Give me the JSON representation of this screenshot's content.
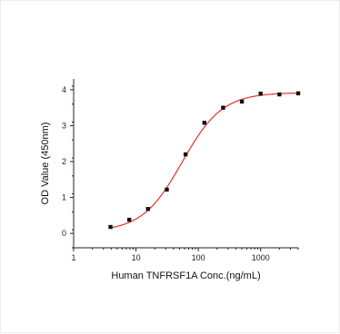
{
  "chart_data": {
    "type": "scatter",
    "title": "",
    "xlabel": "Human TNFRSF1A Conc.(ng/mL)",
    "ylabel": "OD Value (450nm)",
    "xscale": "log",
    "xlim": [
      1,
      4000
    ],
    "ylim": [
      -0.4,
      4.3
    ],
    "xticks": [
      1,
      10,
      100,
      1000
    ],
    "xtick_labels": [
      "1",
      "10",
      "100",
      "1000"
    ],
    "yticks": [
      0,
      1,
      2,
      3,
      4
    ],
    "ytick_labels": [
      "0",
      "1",
      "2",
      "3",
      "4"
    ],
    "grid": false,
    "legend": "none",
    "series": [
      {
        "x": [
          3.9,
          7.8,
          15.6,
          31.25,
          62.5,
          125,
          250,
          500,
          1000,
          2000,
          4000
        ],
        "y": [
          0.18,
          0.38,
          0.68,
          1.22,
          2.2,
          3.08,
          3.5,
          3.67,
          3.89,
          3.87,
          3.9
        ],
        "marker": "square",
        "color": "#111111"
      }
    ],
    "fit_curve": {
      "model": "4PL",
      "bottom": 0.05,
      "top": 3.92,
      "ec50": 55,
      "hill": 1.35,
      "color": "#e8322b"
    }
  }
}
